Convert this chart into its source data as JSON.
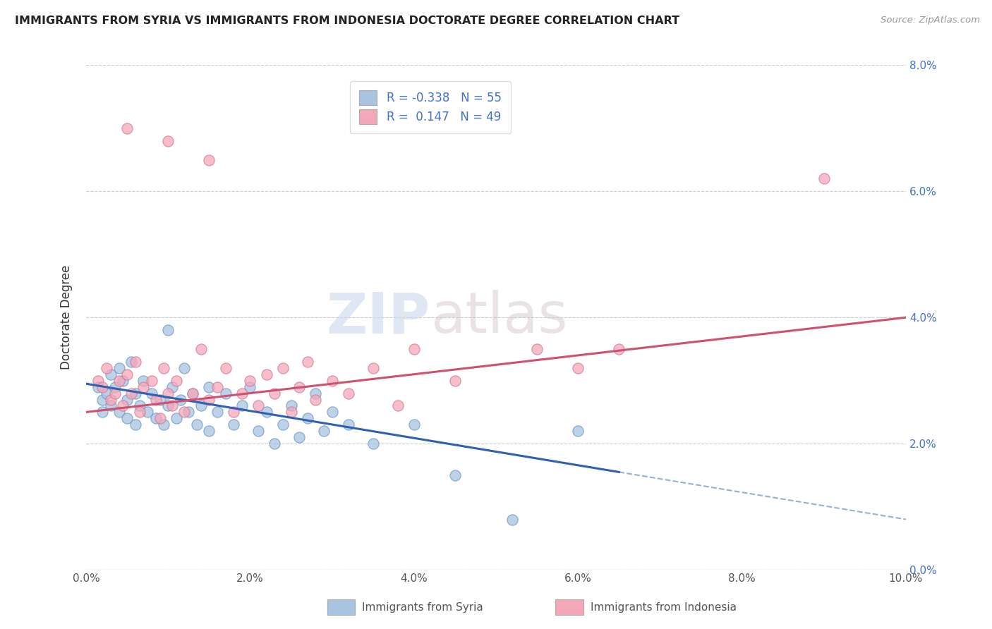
{
  "title": "IMMIGRANTS FROM SYRIA VS IMMIGRANTS FROM INDONESIA DOCTORATE DEGREE CORRELATION CHART",
  "source": "Source: ZipAtlas.com",
  "ylabel": "Doctorate Degree",
  "xlim": [
    0.0,
    10.0
  ],
  "ylim": [
    0.0,
    8.0
  ],
  "xtick_vals": [
    0,
    2,
    4,
    6,
    8,
    10
  ],
  "ytick_vals": [
    0,
    2,
    4,
    6,
    8
  ],
  "xtick_labels": [
    "0.0%",
    "2.0%",
    "4.0%",
    "6.0%",
    "8.0%",
    "10.0%"
  ],
  "ytick_labels": [
    "0.0%",
    "2.0%",
    "4.0%",
    "6.0%",
    "8.0%"
  ],
  "syria_color": "#a8c4e0",
  "syria_edge": "#6090c0",
  "indonesia_color": "#f4a7b9",
  "indonesia_edge": "#d07090",
  "syria_r": "-0.338",
  "syria_n": "55",
  "indonesia_r": "0.147",
  "indonesia_n": "49",
  "syria_line_color": "#3060b0",
  "indonesia_line_color": "#d05070",
  "background_color": "#ffffff",
  "grid_color": "#cccccc",
  "watermark_zip": "ZIP",
  "watermark_atlas": "atlas",
  "legend_label_syria": "Immigrants from Syria",
  "legend_label_indonesia": "Immigrants from Indonesia",
  "syria_line_x0": 0.0,
  "syria_line_y0": 2.95,
  "syria_line_x1": 6.5,
  "syria_line_y1": 1.55,
  "syria_dash_x0": 6.5,
  "syria_dash_y0": 1.55,
  "syria_dash_x1": 10.0,
  "syria_dash_y1": 0.8,
  "indo_line_x0": 0.0,
  "indo_line_y0": 2.5,
  "indo_line_x1": 10.0,
  "indo_line_y1": 4.0,
  "syria_scatter": [
    [
      0.15,
      2.9
    ],
    [
      0.2,
      2.7
    ],
    [
      0.2,
      2.5
    ],
    [
      0.25,
      2.8
    ],
    [
      0.3,
      3.1
    ],
    [
      0.3,
      2.6
    ],
    [
      0.35,
      2.9
    ],
    [
      0.4,
      3.2
    ],
    [
      0.4,
      2.5
    ],
    [
      0.45,
      3.0
    ],
    [
      0.5,
      2.7
    ],
    [
      0.5,
      2.4
    ],
    [
      0.55,
      3.3
    ],
    [
      0.6,
      2.8
    ],
    [
      0.6,
      2.3
    ],
    [
      0.65,
      2.6
    ],
    [
      0.7,
      3.0
    ],
    [
      0.75,
      2.5
    ],
    [
      0.8,
      2.8
    ],
    [
      0.85,
      2.4
    ],
    [
      0.9,
      2.7
    ],
    [
      0.95,
      2.3
    ],
    [
      1.0,
      3.8
    ],
    [
      1.0,
      2.6
    ],
    [
      1.05,
      2.9
    ],
    [
      1.1,
      2.4
    ],
    [
      1.15,
      2.7
    ],
    [
      1.2,
      3.2
    ],
    [
      1.25,
      2.5
    ],
    [
      1.3,
      2.8
    ],
    [
      1.35,
      2.3
    ],
    [
      1.4,
      2.6
    ],
    [
      1.5,
      2.9
    ],
    [
      1.5,
      2.2
    ],
    [
      1.6,
      2.5
    ],
    [
      1.7,
      2.8
    ],
    [
      1.8,
      2.3
    ],
    [
      1.9,
      2.6
    ],
    [
      2.0,
      2.9
    ],
    [
      2.1,
      2.2
    ],
    [
      2.2,
      2.5
    ],
    [
      2.3,
      2.0
    ],
    [
      2.4,
      2.3
    ],
    [
      2.5,
      2.6
    ],
    [
      2.6,
      2.1
    ],
    [
      2.7,
      2.4
    ],
    [
      2.8,
      2.8
    ],
    [
      2.9,
      2.2
    ],
    [
      3.0,
      2.5
    ],
    [
      3.2,
      2.3
    ],
    [
      3.5,
      2.0
    ],
    [
      4.0,
      2.3
    ],
    [
      4.5,
      1.5
    ],
    [
      5.2,
      0.8
    ],
    [
      6.0,
      2.2
    ]
  ],
  "indonesia_scatter": [
    [
      0.15,
      3.0
    ],
    [
      0.2,
      2.9
    ],
    [
      0.25,
      3.2
    ],
    [
      0.3,
      2.7
    ],
    [
      0.35,
      2.8
    ],
    [
      0.4,
      3.0
    ],
    [
      0.45,
      2.6
    ],
    [
      0.5,
      3.1
    ],
    [
      0.55,
      2.8
    ],
    [
      0.6,
      3.3
    ],
    [
      0.65,
      2.5
    ],
    [
      0.7,
      2.9
    ],
    [
      0.8,
      3.0
    ],
    [
      0.85,
      2.7
    ],
    [
      0.9,
      2.4
    ],
    [
      0.95,
      3.2
    ],
    [
      1.0,
      2.8
    ],
    [
      1.05,
      2.6
    ],
    [
      1.1,
      3.0
    ],
    [
      1.2,
      2.5
    ],
    [
      1.3,
      2.8
    ],
    [
      1.4,
      3.5
    ],
    [
      1.5,
      2.7
    ],
    [
      1.6,
      2.9
    ],
    [
      1.7,
      3.2
    ],
    [
      1.8,
      2.5
    ],
    [
      1.9,
      2.8
    ],
    [
      2.0,
      3.0
    ],
    [
      2.1,
      2.6
    ],
    [
      2.2,
      3.1
    ],
    [
      2.3,
      2.8
    ],
    [
      2.4,
      3.2
    ],
    [
      2.5,
      2.5
    ],
    [
      2.6,
      2.9
    ],
    [
      2.7,
      3.3
    ],
    [
      2.8,
      2.7
    ],
    [
      3.0,
      3.0
    ],
    [
      3.2,
      2.8
    ],
    [
      3.5,
      3.2
    ],
    [
      3.8,
      2.6
    ],
    [
      4.0,
      3.5
    ],
    [
      4.5,
      3.0
    ],
    [
      5.5,
      3.5
    ],
    [
      6.0,
      3.2
    ],
    [
      6.5,
      3.5
    ],
    [
      0.5,
      7.0
    ],
    [
      1.0,
      6.8
    ],
    [
      1.5,
      6.5
    ],
    [
      9.0,
      6.2
    ]
  ]
}
